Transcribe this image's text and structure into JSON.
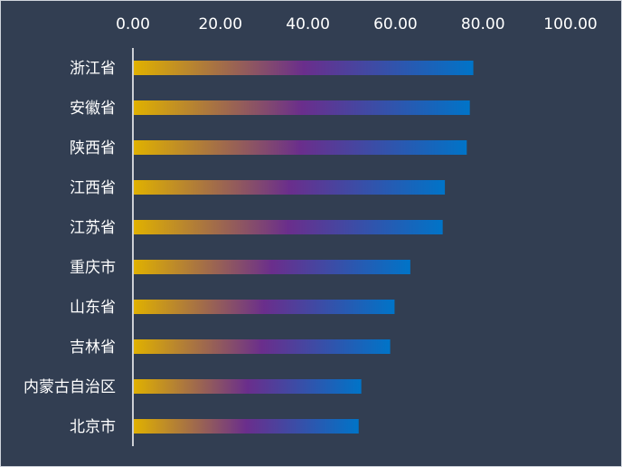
{
  "chart_data": {
    "type": "bar",
    "orientation": "horizontal",
    "title": "",
    "xlabel": "",
    "ylabel": "",
    "xlim": [
      0,
      100
    ],
    "x_ticks": [
      "0.00",
      "20.00",
      "40.00",
      "60.00",
      "80.00",
      "100.00"
    ],
    "x_axis_position": "top",
    "grid": false,
    "categories": [
      "浙江省",
      "安徽省",
      "陕西省",
      "江西省",
      "江苏省",
      "重庆市",
      "山东省",
      "吉林省",
      "内蒙古自治区",
      "北京市"
    ],
    "values": [
      77.8,
      77.0,
      76.3,
      71.3,
      70.8,
      63.4,
      59.8,
      58.8,
      52.2,
      51.6
    ],
    "colors": {
      "background": "#323e52",
      "axis_line": "#ffffff",
      "bar_gradient": [
        "#e0b100",
        "#6a2e8c",
        "#0074c8"
      ],
      "bar_end": "#0074c8",
      "text": "#ffffff"
    }
  }
}
